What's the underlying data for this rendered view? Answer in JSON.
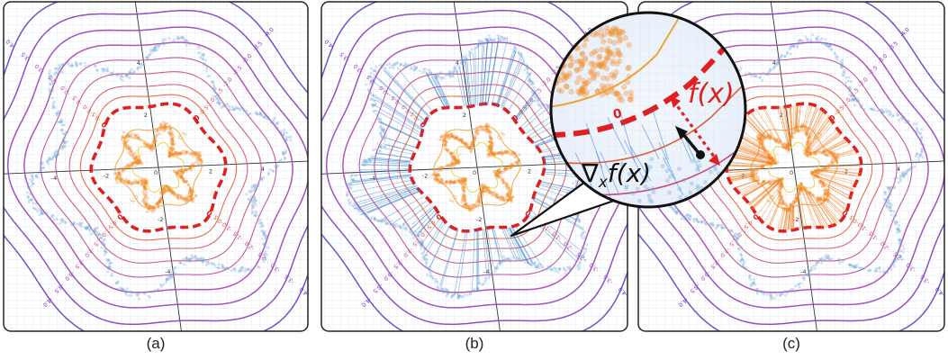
{
  "panels": [
    {
      "id": "a",
      "caption": "(a)"
    },
    {
      "id": "b",
      "caption": "(b)"
    },
    {
      "id": "c",
      "caption": "(c)"
    }
  ],
  "axis_ticks": [
    "-4",
    "-2",
    "2",
    "4"
  ],
  "origin_label": "0",
  "contour_levels": [
    {
      "value": 1.0,
      "label": "1.0",
      "color": "#e8d44a"
    },
    {
      "value": 0.5,
      "label": "0.5",
      "color": "#f0a53c"
    },
    {
      "value": 0,
      "label": "0",
      "color": "#e01f1f"
    },
    {
      "value": -0.5,
      "label": "-0.5",
      "color": "#e0603a"
    },
    {
      "value": -1.0,
      "label": "-1.0",
      "color": "#d8506a"
    },
    {
      "value": -1.5,
      "label": "-1.5",
      "color": "#c84a80"
    },
    {
      "value": -2.0,
      "label": "-2.0",
      "color": "#b8489a"
    },
    {
      "value": -2.5,
      "label": "-2.5",
      "color": "#a844aa"
    },
    {
      "value": -3.0,
      "label": "-3.0",
      "color": "#9640b8"
    },
    {
      "value": -3.5,
      "label": "-3.5",
      "color": "#7f3cc0"
    },
    {
      "value": -4.0,
      "label": "-4.0",
      "color": "#6a38c2"
    }
  ],
  "colors": {
    "inner_cloud": "#f08c2a",
    "outer_cloud": "#6fa8dc",
    "zero_level": "#e01f1f",
    "gradient_lines": "#2f7fd0",
    "orange_lines": "#f07a1a",
    "grid": "#dce6f2"
  },
  "magnifier": {
    "f_label": "f(x)",
    "grad_label": "∇",
    "grad_sub": "x",
    "grad_rest": "f(x)",
    "zero_label": "0"
  }
}
